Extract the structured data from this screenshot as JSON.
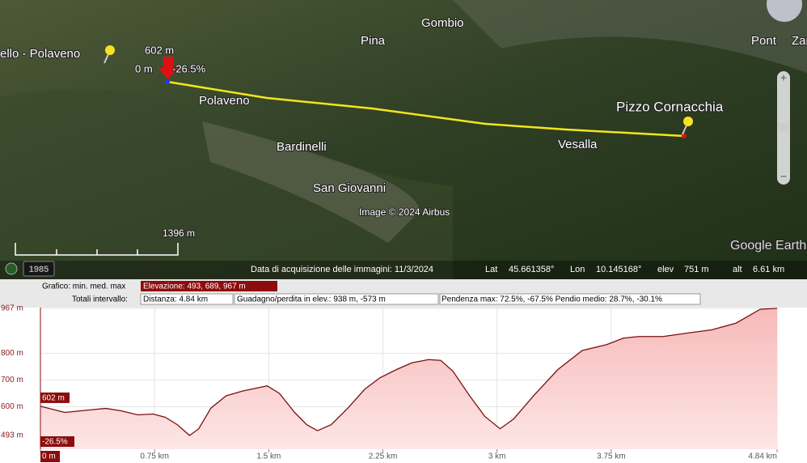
{
  "map": {
    "labels": [
      "ello - Polaveno",
      "Pina",
      "Gombio",
      "Pont",
      "Zar",
      "Polaveno",
      "Bardinelli",
      "San Giovanni",
      "Vesalla",
      "Pizzo Cornacchia"
    ],
    "pin_readout": {
      "elevation": "602 m",
      "distance": "0 m",
      "slope": "-26.5%"
    },
    "copyright": "Image © 2024 Airbus",
    "scale": "1396 m",
    "year": "1985",
    "logo": "Google Earth"
  },
  "status_bar": {
    "date": "Data di acquisizione delle immagini: 11/3/2024",
    "lat_label": "Lat",
    "lat": "45.661358°",
    "lon_label": "Lon",
    "lon": "10.145168°",
    "elev_label": "elev",
    "elev": "751 m",
    "alt_label": "alt",
    "alt": "6.61 km"
  },
  "profile_info": {
    "graph_label": "Grafico: min. med. max",
    "elevation": "Elevazione: 493, 689, 967 m",
    "totals_label": "Totali intervallo:",
    "distance": "Distanza: 4.84 km",
    "gain_loss": "Guadagno/perdita in elev.: 938 m, -573 m",
    "slope": "Pendenza max: 72.5%, -67.5% Pendio medio: 28.7%, -30.1%"
  },
  "chart_data": {
    "type": "area",
    "x": [
      0,
      0.16,
      0.32,
      0.43,
      0.53,
      0.64,
      0.74,
      0.82,
      0.9,
      0.98,
      1.04,
      1.12,
      1.22,
      1.33,
      1.49,
      1.57,
      1.67,
      1.75,
      1.82,
      1.91,
      2.02,
      2.13,
      2.23,
      2.34,
      2.44,
      2.55,
      2.63,
      2.71,
      2.82,
      2.92,
      3.02,
      3.11,
      3.24,
      3.4,
      3.56,
      3.72,
      3.83,
      3.93,
      4.09,
      4.25,
      4.41,
      4.57,
      4.73,
      4.84
    ],
    "series": [
      {
        "color": "#7a1010",
        "values": [
          602,
          579,
          588,
          594,
          585,
          570,
          573,
          561,
          533,
          493,
          518,
          595,
          641,
          659,
          678,
          650,
          579,
          533,
          511,
          533,
          595,
          665,
          708,
          739,
          764,
          776,
          773,
          733,
          641,
          564,
          518,
          555,
          641,
          739,
          810,
          832,
          856,
          862,
          862,
          875,
          887,
          912,
          964,
          967
        ]
      }
    ],
    "xlim": [
      0,
      4.84
    ],
    "xticks": [
      {
        "value": 0,
        "label": "0 m"
      },
      {
        "value": 0.75,
        "label": "0.75 km"
      },
      {
        "value": 1.5,
        "label": "1.5 km"
      },
      {
        "value": 2.25,
        "label": "2.25 km"
      },
      {
        "value": 3,
        "label": "3 km"
      },
      {
        "value": 3.75,
        "label": "3.75 km"
      },
      {
        "value": 4.84,
        "label": "4.84 km"
      }
    ],
    "ylim": [
      493,
      967
    ],
    "yticks": [
      {
        "value": 493,
        "label": "493 m"
      },
      {
        "value": 600,
        "label": "600 m"
      },
      {
        "value": 700,
        "label": "700 m"
      },
      {
        "value": 800,
        "label": "800 m"
      },
      {
        "value": 967,
        "label": "967 m"
      }
    ],
    "grid": true,
    "cursor": {
      "x": 0,
      "elevation_label": "602 m",
      "slope_label": "-26.5%"
    }
  }
}
